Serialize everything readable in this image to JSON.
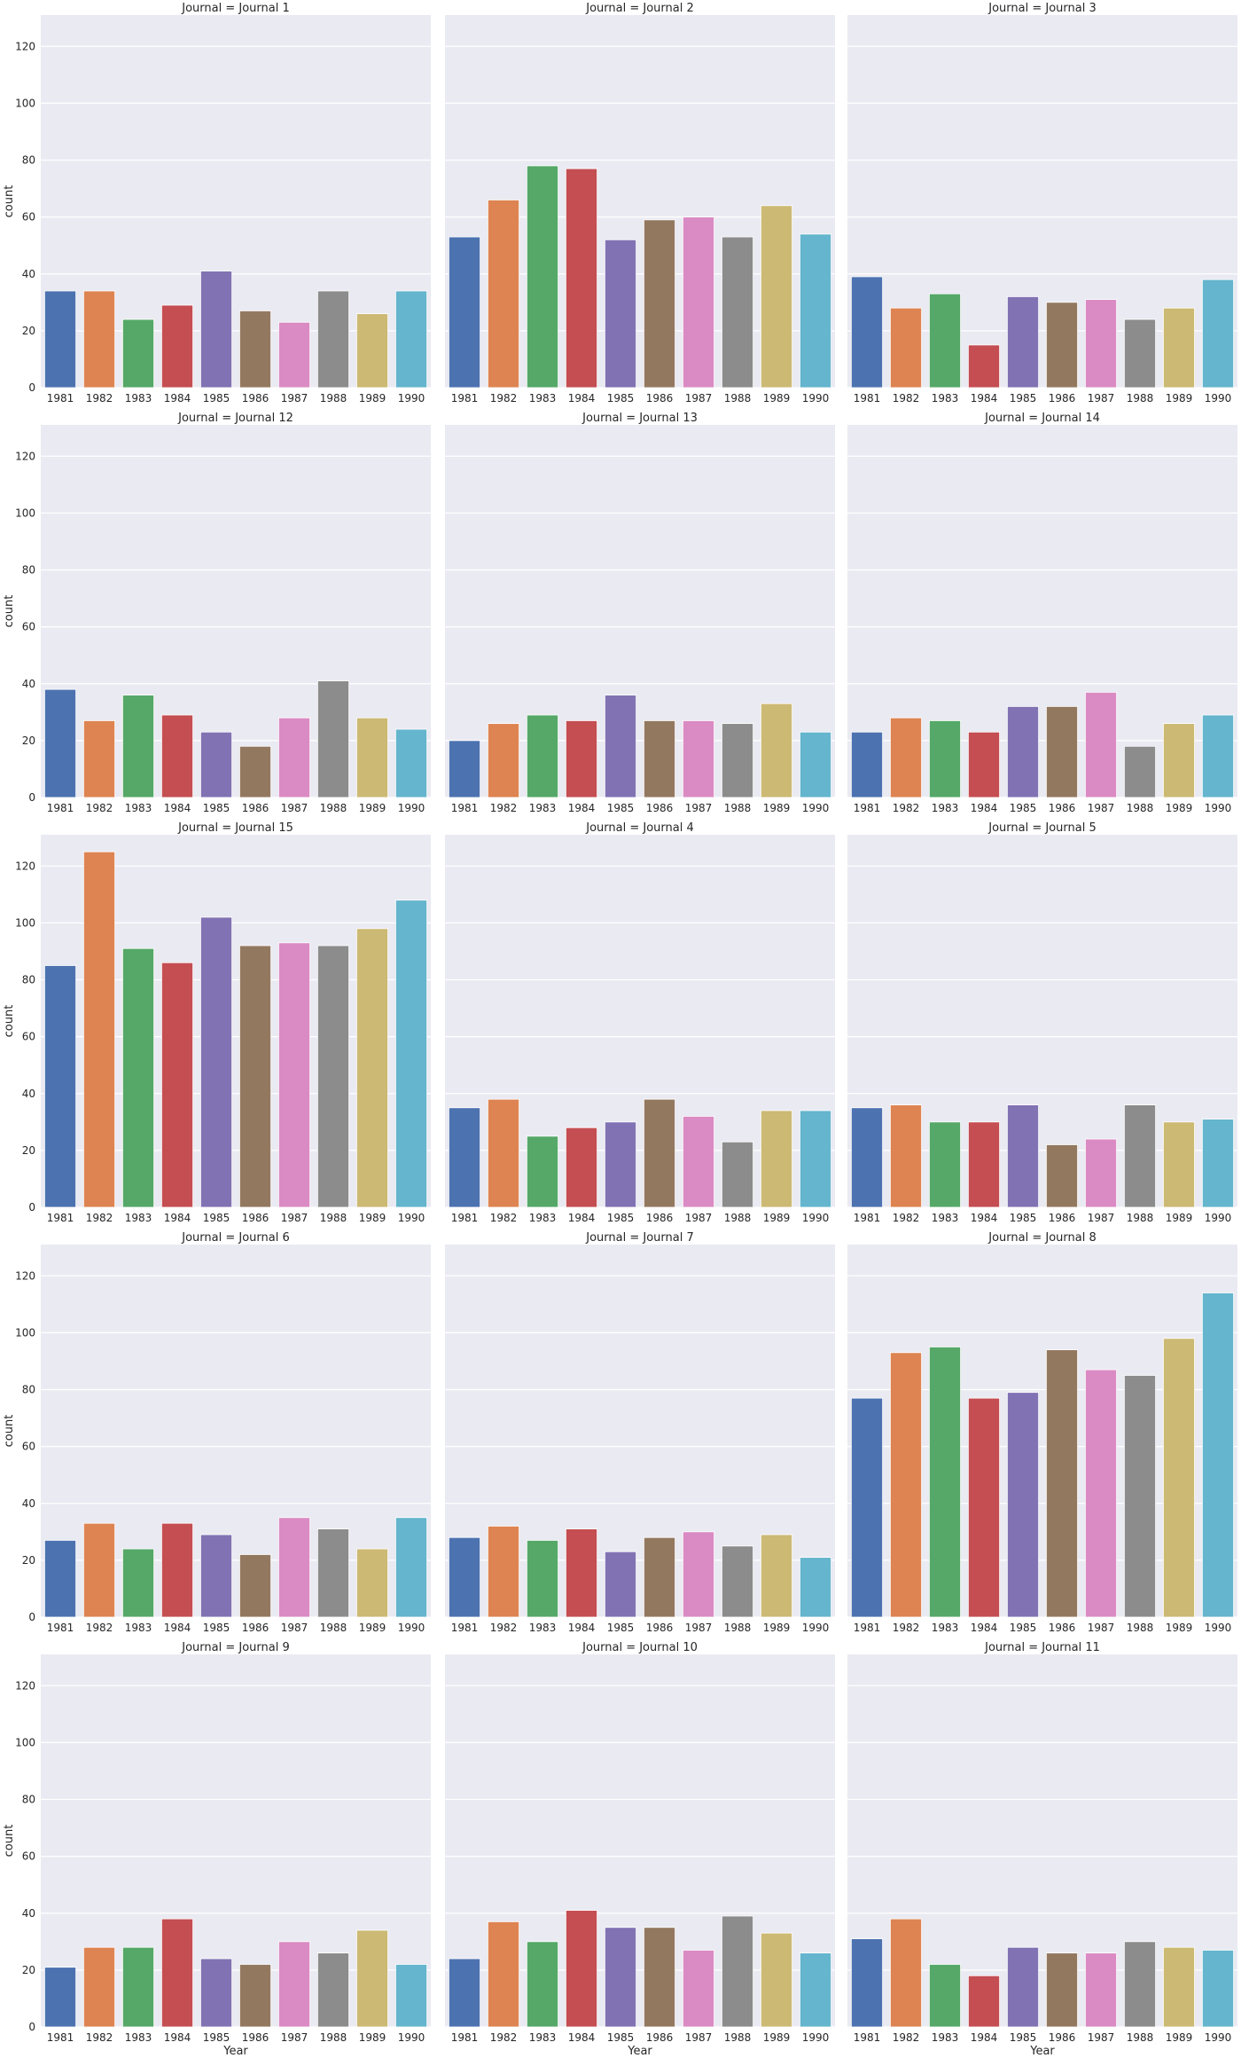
{
  "figure": {
    "ylabel": "count",
    "xlabel": "Year",
    "yticks": [
      "0",
      "20",
      "40",
      "60",
      "80",
      "100",
      "120"
    ]
  },
  "chart_data": {
    "type": "bar",
    "kind": "faceted count plot",
    "facet_variable": "Journal",
    "columns": 3,
    "xlabel": "Year",
    "ylabel": "count",
    "ylim": [
      0,
      131
    ],
    "grid": true,
    "categories": [
      "1981",
      "1982",
      "1983",
      "1984",
      "1985",
      "1986",
      "1987",
      "1988",
      "1989",
      "1990"
    ],
    "colors": [
      "#4c72b0",
      "#dd8452",
      "#55a868",
      "#c44e52",
      "#8172b3",
      "#937860",
      "#da8bc3",
      "#8c8c8c",
      "#ccb974",
      "#64b5cd"
    ],
    "facets": [
      {
        "title": "Journal = Journal 1",
        "values": [
          34,
          34,
          24,
          29,
          41,
          27,
          23,
          34,
          26,
          34
        ]
      },
      {
        "title": "Journal = Journal 2",
        "values": [
          53,
          66,
          78,
          77,
          52,
          59,
          60,
          53,
          64,
          54
        ]
      },
      {
        "title": "Journal = Journal 3",
        "values": [
          39,
          28,
          33,
          15,
          32,
          30,
          31,
          24,
          28,
          38
        ]
      },
      {
        "title": "Journal = Journal 12",
        "values": [
          38,
          27,
          36,
          29,
          23,
          18,
          28,
          41,
          28,
          24
        ]
      },
      {
        "title": "Journal = Journal 13",
        "values": [
          20,
          26,
          29,
          27,
          36,
          27,
          27,
          26,
          33,
          23
        ]
      },
      {
        "title": "Journal = Journal 14",
        "values": [
          23,
          28,
          27,
          23,
          32,
          32,
          37,
          18,
          26,
          29
        ]
      },
      {
        "title": "Journal = Journal 15",
        "values": [
          85,
          125,
          91,
          86,
          102,
          92,
          93,
          92,
          98,
          108
        ]
      },
      {
        "title": "Journal = Journal 4",
        "values": [
          35,
          38,
          25,
          28,
          30,
          38,
          32,
          23,
          34,
          34
        ]
      },
      {
        "title": "Journal = Journal 5",
        "values": [
          35,
          36,
          30,
          30,
          36,
          22,
          24,
          36,
          30,
          31
        ]
      },
      {
        "title": "Journal = Journal 6",
        "values": [
          27,
          33,
          24,
          33,
          29,
          22,
          35,
          31,
          24,
          35
        ]
      },
      {
        "title": "Journal = Journal 7",
        "values": [
          28,
          32,
          27,
          31,
          23,
          28,
          30,
          25,
          29,
          21
        ]
      },
      {
        "title": "Journal = Journal 8",
        "values": [
          77,
          93,
          95,
          77,
          79,
          94,
          87,
          85,
          98,
          114
        ]
      },
      {
        "title": "Journal = Journal 9",
        "values": [
          21,
          28,
          28,
          38,
          24,
          22,
          30,
          26,
          34,
          22
        ]
      },
      {
        "title": "Journal = Journal 10",
        "values": [
          24,
          37,
          30,
          41,
          35,
          35,
          27,
          39,
          33,
          26
        ]
      },
      {
        "title": "Journal = Journal 11",
        "values": [
          31,
          38,
          22,
          18,
          28,
          26,
          26,
          30,
          28,
          27
        ]
      }
    ]
  }
}
